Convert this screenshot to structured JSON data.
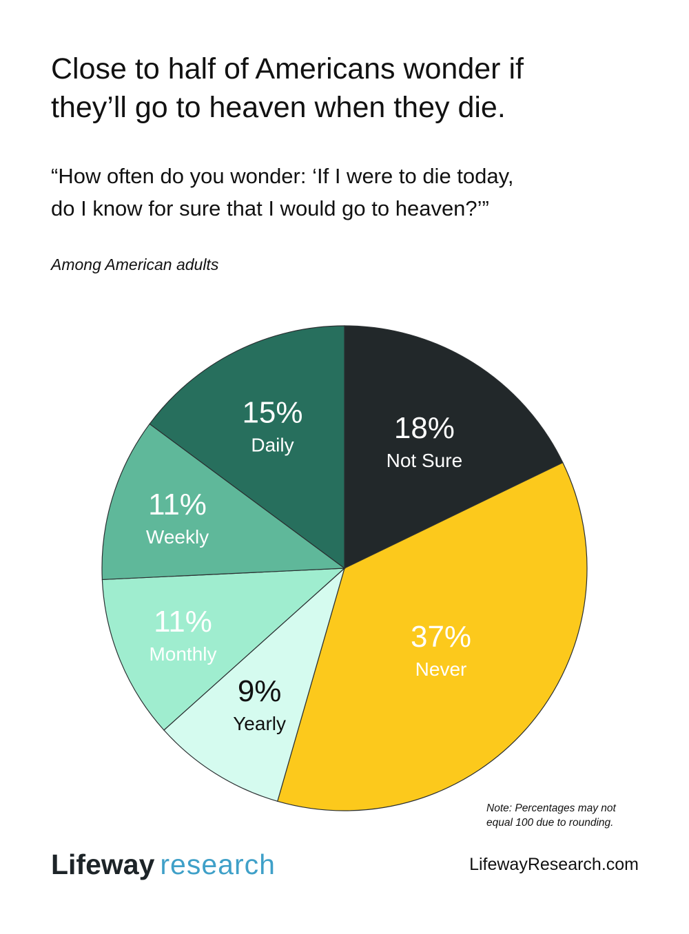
{
  "header": {
    "title_lines": [
      "Close to half of Americans wonder if",
      "they’ll go to heaven when they die."
    ],
    "question_lines": [
      "“How often do you wonder: ‘If I were to die today,",
      "do I know for sure that I would go to heaven?’”"
    ],
    "base": "Among American adults"
  },
  "chart_data": {
    "type": "pie",
    "start": "12 o'clock, clockwise",
    "slices": [
      {
        "label": "Not Sure",
        "value": 18,
        "display": "18%",
        "color": "#22282a",
        "text_color": "#ffffff"
      },
      {
        "label": "Never",
        "value": 37,
        "display": "37%",
        "color": "#fcc91c",
        "text_color": "#ffffff"
      },
      {
        "label": "Yearly",
        "value": 9,
        "display": "9%",
        "color": "#d5fbef",
        "text_color": "#111111"
      },
      {
        "label": "Monthly",
        "value": 11,
        "display": "11%",
        "color": "#9fedcf",
        "text_color": "#ffffff"
      },
      {
        "label": "Weekly",
        "value": 11,
        "display": "11%",
        "color": "#5fb89a",
        "text_color": "#ffffff"
      },
      {
        "label": "Daily",
        "value": 15,
        "display": "15%",
        "color": "#276f5d",
        "text_color": "#ffffff"
      }
    ]
  },
  "footer": {
    "note_lines": [
      "Note: Percentages may not",
      "equal 100 due to rounding."
    ],
    "logo_brand": "Lifeway",
    "logo_sub": "research",
    "website": "LifewayResearch.com"
  }
}
